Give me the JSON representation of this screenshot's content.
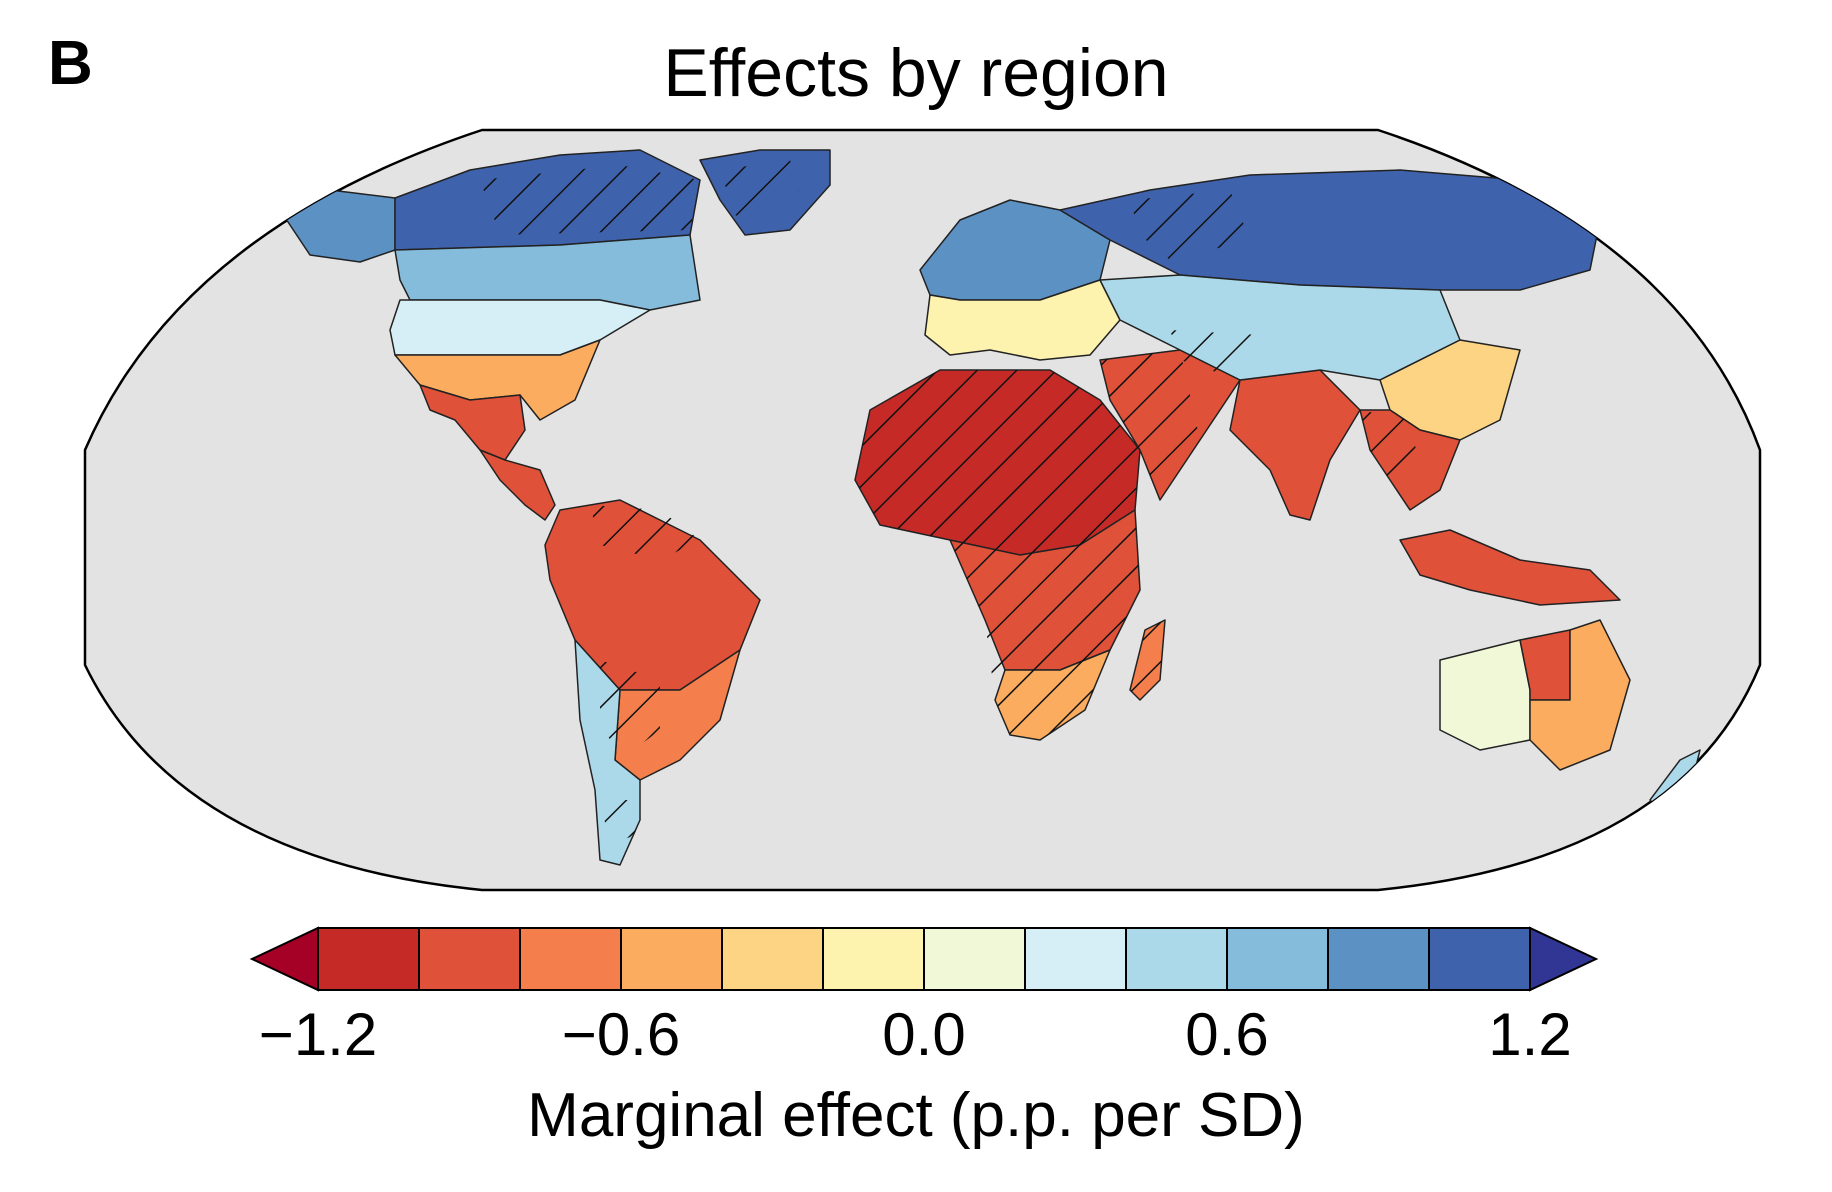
{
  "panel_label": "B",
  "title": "Effects by region",
  "legend": {
    "title": "Marginal effect (p.p. per SD)",
    "ticks": [
      "−1.2",
      "−0.6",
      "0.0",
      "0.6",
      "1.2"
    ],
    "colors": [
      "#a50026",
      "#c62a27",
      "#e0513a",
      "#f47f4c",
      "#fcac5f",
      "#fdd484",
      "#fef3ae",
      "#f1f8d8",
      "#d6eef5",
      "#acd9e9",
      "#85bcdc",
      "#5c91c3",
      "#3f62ad",
      "#313695"
    ]
  },
  "map": {
    "ocean_color": "#e3e3e3",
    "hatching": "statistically significant regions shown with diagonal hatch",
    "regions": [
      {
        "name": "Alaska",
        "color": "#5c91c3"
      },
      {
        "name": "Northern Canada",
        "color": "#3f62ad"
      },
      {
        "name": "Greenland",
        "color": "#3f62ad"
      },
      {
        "name": "Central Canada",
        "color": "#85bcdc"
      },
      {
        "name": "Northern US",
        "color": "#d6eef5"
      },
      {
        "name": "Southern US",
        "color": "#fcac5f"
      },
      {
        "name": "Mexico",
        "color": "#e0513a"
      },
      {
        "name": "Central America",
        "color": "#e0513a"
      },
      {
        "name": "Amazon",
        "color": "#e0513a"
      },
      {
        "name": "Southern Brazil",
        "color": "#f47f4c"
      },
      {
        "name": "Patagonia",
        "color": "#acd9e9"
      },
      {
        "name": "Northern Europe",
        "color": "#5c91c3"
      },
      {
        "name": "Southern Europe",
        "color": "#fef3ae"
      },
      {
        "name": "Sahara & Sahel",
        "color": "#c62a27"
      },
      {
        "name": "Central Africa",
        "color": "#e0513a"
      },
      {
        "name": "Southern Africa",
        "color": "#fcac5f"
      },
      {
        "name": "Middle East",
        "color": "#e0513a"
      },
      {
        "name": "India",
        "color": "#e0513a"
      },
      {
        "name": "Siberia",
        "color": "#3f62ad"
      },
      {
        "name": "Central Asia",
        "color": "#acd9e9"
      },
      {
        "name": "China",
        "color": "#fdd484"
      },
      {
        "name": "Southeast Asia",
        "color": "#e0513a"
      },
      {
        "name": "Indonesia",
        "color": "#e0513a"
      },
      {
        "name": "Western Australia",
        "color": "#f1f8d8"
      },
      {
        "name": "Central Australia",
        "color": "#e0513a"
      },
      {
        "name": "Eastern Australia",
        "color": "#fcac5f"
      },
      {
        "name": "New Zealand",
        "color": "#acd9e9"
      },
      {
        "name": "Madagascar",
        "color": "#f47f4c"
      }
    ]
  }
}
